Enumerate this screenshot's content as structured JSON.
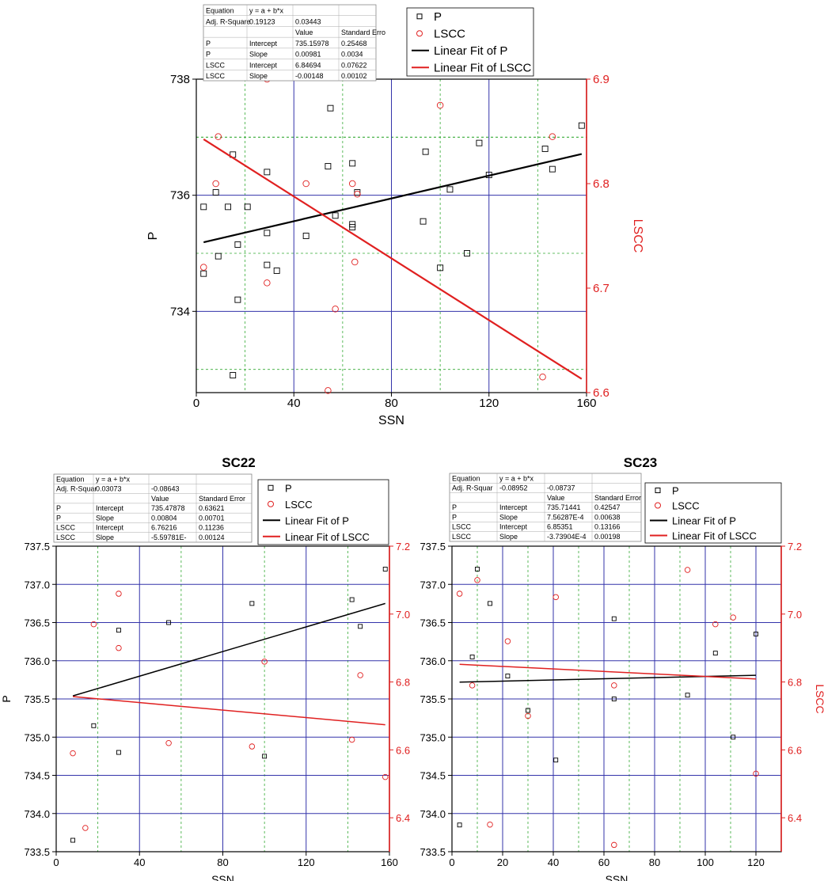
{
  "chart_data": [
    {
      "type": "scatter",
      "title": "",
      "xlabel": "SSN",
      "ylabel": "P",
      "y2label": "LSCC",
      "xlim": [
        0,
        160
      ],
      "ylim": [
        732.6,
        738
      ],
      "y2lim": [
        6.6,
        6.9
      ],
      "xticks": [
        "0",
        "40",
        "80",
        "120",
        "160"
      ],
      "yticks": [
        "734",
        "736",
        "738"
      ],
      "y2ticks": [
        "6.6",
        "6.7",
        "6.8",
        "6.9"
      ],
      "grid": true,
      "legend_position": "top-right",
      "legend": [
        "P",
        "LSCC",
        "Linear Fit of P",
        "Linear Fit of LSCC"
      ],
      "colors": {
        "P": "#000000",
        "LSCC": "#e02020",
        "fitP": "#000000",
        "fitL": "#e02020",
        "major": "#3333aa",
        "minor": "#33aa33"
      },
      "fit_table": {
        "header": [
          "Equation",
          "y = a + b*x",
          "",
          ""
        ],
        "rows": [
          [
            "Adj. R-Square",
            "0.19123",
            "0.03443",
            ""
          ],
          [
            "",
            "",
            "Value",
            "Standard Erro"
          ],
          [
            "P",
            "Intercept",
            "735.15978",
            "0.25468"
          ],
          [
            "P",
            "Slope",
            "0.00981",
            "0.0034"
          ],
          [
            "LSCC",
            "Intercept",
            "6.84694",
            "0.07622"
          ],
          [
            "LSCC",
            "Slope",
            "-0.00148",
            "0.00102"
          ]
        ]
      },
      "series": [
        {
          "name": "P",
          "axis": "left",
          "points": [
            [
              3,
              735.8
            ],
            [
              3,
              734.65
            ],
            [
              8,
              736.05
            ],
            [
              9,
              734.95
            ],
            [
              13,
              735.8
            ],
            [
              15,
              736.7
            ],
            [
              15,
              732.9
            ],
            [
              17,
              734.2
            ],
            [
              17,
              735.15
            ],
            [
              21,
              735.8
            ],
            [
              29,
              736.4
            ],
            [
              29,
              735.35
            ],
            [
              29,
              734.8
            ],
            [
              33,
              734.7
            ],
            [
              45,
              735.3
            ],
            [
              54,
              736.5
            ],
            [
              55,
              737.5
            ],
            [
              57,
              735.65
            ],
            [
              64,
              736.55
            ],
            [
              64,
              735.5
            ],
            [
              64,
              735.45
            ],
            [
              66,
              736.05
            ],
            [
              93,
              735.55
            ],
            [
              94,
              736.75
            ],
            [
              100,
              734.75
            ],
            [
              104,
              736.1
            ],
            [
              111,
              735.0
            ],
            [
              116,
              736.9
            ],
            [
              120,
              736.35
            ],
            [
              143,
              736.8
            ],
            [
              146,
              736.45
            ],
            [
              158,
              737.2
            ]
          ]
        },
        {
          "name": "LSCC",
          "axis": "right",
          "points": [
            [
              3,
              6.72
            ],
            [
              9,
              6.845
            ],
            [
              8,
              6.8
            ],
            [
              29,
              6.9
            ],
            [
              29,
              6.705
            ],
            [
              45,
              6.8
            ],
            [
              54,
              6.602
            ],
            [
              57,
              6.68
            ],
            [
              64,
              6.8
            ],
            [
              65,
              6.725
            ],
            [
              66,
              6.79
            ],
            [
              100,
              6.875
            ],
            [
              142,
              6.615
            ],
            [
              146,
              6.845
            ]
          ]
        },
        {
          "name": "Linear Fit of P",
          "axis": "left",
          "line": [
            [
              3,
              735.19
            ],
            [
              158,
              736.71
            ]
          ]
        },
        {
          "name": "Linear Fit of LSCC",
          "axis": "right",
          "line": [
            [
              3,
              6.8425
            ],
            [
              158,
              6.6131
            ]
          ]
        }
      ]
    },
    {
      "type": "scatter",
      "title": "SC22",
      "xlabel": "SSN",
      "ylabel": "P",
      "y2label": "",
      "xlim": [
        0,
        160
      ],
      "ylim": [
        733.5,
        737.5
      ],
      "y2lim": [
        6.3,
        7.2
      ],
      "xticks": [
        "0",
        "40",
        "80",
        "120",
        "160"
      ],
      "yticks": [
        "733.5",
        "734.0",
        "734.5",
        "735.0",
        "735.5",
        "736.0",
        "736.5",
        "737.0",
        "737.5"
      ],
      "y2ticks": [
        "6.4",
        "6.6",
        "6.8",
        "7.0",
        "7.2"
      ],
      "grid": true,
      "legend_position": "top-right",
      "legend": [
        "P",
        "LSCC",
        "Linear Fit of P",
        "Linear Fit of LSCC"
      ],
      "colors": {
        "P": "#000000",
        "LSCC": "#e02020",
        "fitP": "#000000",
        "fitL": "#e02020",
        "major": "#3333aa",
        "minor": "#33aa33"
      },
      "fit_table": {
        "header": [
          "Equation",
          "y = a + b*x",
          "",
          ""
        ],
        "rows": [
          [
            "Adj. R-Squar",
            "0.03073",
            "-0.08643",
            ""
          ],
          [
            "",
            "",
            "Value",
            "Standard Error"
          ],
          [
            "P",
            "Intercept",
            "735.47878",
            "0.63621"
          ],
          [
            "P",
            "Slope",
            "0.00804",
            "0.00701"
          ],
          [
            "LSCC",
            "Intercept",
            "6.76216",
            "0.11236"
          ],
          [
            "LSCC",
            "Slope",
            "-5.59781E-",
            "0.00124"
          ]
        ]
      },
      "series": [
        {
          "name": "P",
          "axis": "left",
          "points": [
            [
              8,
              733.65
            ],
            [
              18,
              735.15
            ],
            [
              30,
              734.8
            ],
            [
              30,
              736.4
            ],
            [
              54,
              736.5
            ],
            [
              94,
              736.75
            ],
            [
              100,
              734.75
            ],
            [
              142,
              736.8
            ],
            [
              146,
              736.45
            ],
            [
              158,
              737.2
            ]
          ]
        },
        {
          "name": "LSCC",
          "axis": "right",
          "points": [
            [
              8,
              6.59
            ],
            [
              14,
              6.37
            ],
            [
              18,
              6.97
            ],
            [
              30,
              7.06
            ],
            [
              30,
              6.9
            ],
            [
              54,
              6.62
            ],
            [
              94,
              6.61
            ],
            [
              100,
              6.86
            ],
            [
              142,
              6.63
            ],
            [
              146,
              6.82
            ],
            [
              158,
              6.52
            ]
          ]
        },
        {
          "name": "Linear Fit of P",
          "axis": "left",
          "line": [
            [
              8,
              735.54
            ],
            [
              158,
              736.75
            ]
          ]
        },
        {
          "name": "Linear Fit of LSCC",
          "axis": "right",
          "line": [
            [
              8,
              6.757
            ],
            [
              158,
              6.674
            ]
          ]
        }
      ]
    },
    {
      "type": "scatter",
      "title": "SC23",
      "xlabel": "SSN",
      "ylabel": "",
      "y2label": "LSCC",
      "xlim": [
        0,
        130
      ],
      "ylim": [
        733.5,
        737.5
      ],
      "y2lim": [
        6.3,
        7.2
      ],
      "xticks": [
        "0",
        "20",
        "40",
        "60",
        "80",
        "100",
        "120"
      ],
      "yticks": [
        "733.5",
        "734.0",
        "734.5",
        "735.0",
        "735.5",
        "736.0",
        "736.5",
        "737.0",
        "737.5"
      ],
      "y2ticks": [
        "6.4",
        "6.6",
        "6.8",
        "7.0",
        "7.2"
      ],
      "grid": true,
      "legend_position": "top-right",
      "legend": [
        "P",
        "LSCC",
        "Linear Fit of P",
        "Linear Fit of LSCC"
      ],
      "colors": {
        "P": "#000000",
        "LSCC": "#e02020",
        "fitP": "#000000",
        "fitL": "#e02020",
        "major": "#3333aa",
        "minor": "#33aa33"
      },
      "fit_table": {
        "header": [
          "Equation",
          "y = a + b*x",
          "",
          ""
        ],
        "rows": [
          [
            "Adj. R-Squar",
            "-0.08952",
            "-0.08737",
            ""
          ],
          [
            "",
            "",
            "Value",
            "Standard Error"
          ],
          [
            "P",
            "Intercept",
            "735.71441",
            "0.42547"
          ],
          [
            "P",
            "Slope",
            "7.56287E-4",
            "0.00638"
          ],
          [
            "LSCC",
            "Intercept",
            "6.85351",
            "0.13166"
          ],
          [
            "LSCC",
            "Slope",
            "-3.73904E-4",
            "0.00198"
          ]
        ]
      },
      "series": [
        {
          "name": "P",
          "axis": "left",
          "points": [
            [
              3,
              733.85
            ],
            [
              8,
              736.05
            ],
            [
              10,
              737.2
            ],
            [
              15,
              736.75
            ],
            [
              22,
              735.8
            ],
            [
              30,
              735.35
            ],
            [
              41,
              734.7
            ],
            [
              64,
              736.55
            ],
            [
              64,
              735.5
            ],
            [
              93,
              735.55
            ],
            [
              104,
              736.1
            ],
            [
              111,
              735.0
            ],
            [
              120,
              736.35
            ]
          ]
        },
        {
          "name": "LSCC",
          "axis": "right",
          "points": [
            [
              3,
              7.06
            ],
            [
              8,
              6.79
            ],
            [
              10,
              7.1
            ],
            [
              15,
              6.38
            ],
            [
              22,
              6.92
            ],
            [
              30,
              6.7
            ],
            [
              41,
              7.05
            ],
            [
              64,
              6.79
            ],
            [
              64,
              6.32
            ],
            [
              93,
              7.13
            ],
            [
              104,
              6.97
            ],
            [
              111,
              6.99
            ],
            [
              120,
              6.53
            ]
          ]
        },
        {
          "name": "Linear Fit of P",
          "axis": "left",
          "line": [
            [
              3,
              735.72
            ],
            [
              120,
              735.81
            ]
          ]
        },
        {
          "name": "Linear Fit of LSCC",
          "axis": "right",
          "line": [
            [
              3,
              6.852
            ],
            [
              120,
              6.809
            ]
          ]
        }
      ]
    }
  ]
}
